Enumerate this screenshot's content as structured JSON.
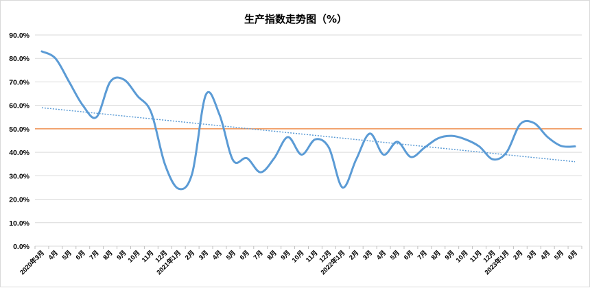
{
  "chart_data": {
    "type": "line",
    "title": "生产指数走势图（%）",
    "ylim": [
      0,
      0.9
    ],
    "y_tick_values": [
      0,
      0.1,
      0.2,
      0.3,
      0.4,
      0.5,
      0.6,
      0.7,
      0.8,
      0.9
    ],
    "y_tick_labels": [
      "0.0%",
      "10.0%",
      "20.0%",
      "30.0%",
      "40.0%",
      "50.0%",
      "60.0%",
      "70.0%",
      "80.0%",
      "90.0%"
    ],
    "categories": [
      "2020年3月",
      "4月",
      "5月",
      "6月",
      "7月",
      "8月",
      "9月",
      "10月",
      "11月",
      "12月",
      "2021年1月",
      "2月",
      "3月",
      "4月",
      "5月",
      "6月",
      "7月",
      "8月",
      "9月",
      "10月",
      "11月",
      "12月",
      "2022年1月",
      "2月",
      "3月",
      "4月",
      "5月",
      "6月",
      "7月",
      "8月",
      "9月",
      "10月",
      "11月",
      "12月",
      "2023年1月",
      "2月",
      "3月",
      "4月",
      "5月",
      "6月"
    ],
    "x_tick_labels": [
      "2020年3月",
      "4月",
      "5月",
      "6月",
      "7月",
      "8月",
      "9月",
      "10月",
      "11月",
      "12月",
      "2021年1月",
      "2月",
      "3月",
      "4月",
      "5月",
      "6月",
      "7月",
      "8月",
      "9月",
      "10月",
      "11月",
      "12月",
      "2022年1月",
      "2月",
      "3月",
      "4月",
      "5月",
      "6月",
      "7月",
      "8月",
      "9月",
      "10月",
      "11月",
      "12月",
      "2023年1月",
      "2月",
      "3月",
      "4月",
      "5月",
      "6月"
    ],
    "series": [
      {
        "values": [
          0.83,
          0.8,
          0.7,
          0.6,
          0.55,
          0.7,
          0.71,
          0.64,
          0.57,
          0.35,
          0.245,
          0.31,
          0.645,
          0.56,
          0.365,
          0.375,
          0.315,
          0.375,
          0.465,
          0.39,
          0.455,
          0.42,
          0.25,
          0.37,
          0.48,
          0.39,
          0.445,
          0.38,
          0.42,
          0.46,
          0.47,
          0.455,
          0.425,
          0.37,
          0.4,
          0.52,
          0.525,
          0.465,
          0.427,
          0.425
        ],
        "color": "#5b9bd5"
      }
    ],
    "reference_line": {
      "value": 0.5,
      "color": "#ed7d31"
    },
    "trendline": {
      "start": 0.59,
      "end": 0.36,
      "color": "#5b9bd5",
      "style": "dotted"
    },
    "grid": true,
    "legend": "none"
  }
}
